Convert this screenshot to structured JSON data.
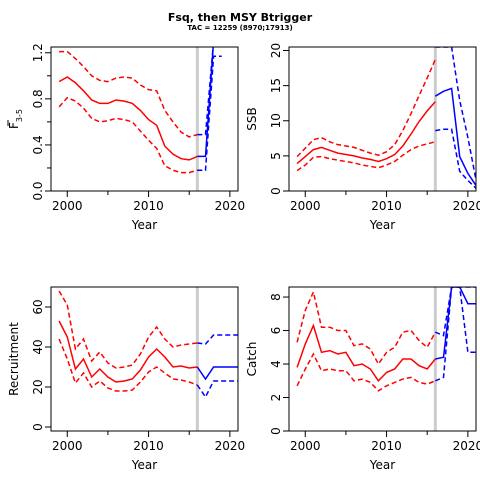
{
  "title": "Fsq, then MSY Btrigger",
  "subtitle": "TAC = 12259 (8970;17913)",
  "colors": {
    "historic": "#ff0000",
    "projection": "#0000ff",
    "vline": "#cccccc"
  },
  "chart_data": [
    {
      "id": "F",
      "type": "line",
      "xlabel": "Year",
      "ylabel": "F3-5",
      "ylabel_main": "F",
      "ylabel_sub": "3-5",
      "xlim": [
        1998,
        2021
      ],
      "ylim": [
        0,
        1.25
      ],
      "xticks": [
        2000,
        2010,
        2020
      ],
      "yticks": [
        0.0,
        0.4,
        0.8,
        1.2
      ],
      "yticks_minor": [
        0.2,
        0.6,
        1.0
      ],
      "yticklabels": [
        "0.0",
        "0.4",
        "0.8",
        "1.2"
      ],
      "vline": 2016,
      "grid": false,
      "historic": {
        "x": [
          1999,
          2000,
          2001,
          2002,
          2003,
          2004,
          2005,
          2006,
          2007,
          2008,
          2009,
          2010,
          2011,
          2012,
          2013,
          2014,
          2015,
          2016
        ],
        "median": [
          0.95,
          0.99,
          0.94,
          0.87,
          0.79,
          0.76,
          0.76,
          0.79,
          0.78,
          0.76,
          0.7,
          0.62,
          0.57,
          0.39,
          0.32,
          0.28,
          0.27,
          0.3
        ],
        "lower": [
          0.73,
          0.81,
          0.78,
          0.72,
          0.63,
          0.6,
          0.61,
          0.63,
          0.62,
          0.6,
          0.52,
          0.44,
          0.37,
          0.22,
          0.18,
          0.16,
          0.16,
          0.18
        ],
        "upper": [
          1.21,
          1.21,
          1.15,
          1.08,
          1.0,
          0.96,
          0.95,
          0.98,
          0.99,
          0.98,
          0.92,
          0.88,
          0.87,
          0.7,
          0.6,
          0.51,
          0.47,
          0.49
        ]
      },
      "projection": {
        "x": [
          2016,
          2017,
          2018,
          2019
        ],
        "median": [
          0.3,
          0.3,
          1.3,
          1.3
        ],
        "lower": [
          0.18,
          0.18,
          1.17,
          1.17
        ],
        "upper": [
          0.49,
          0.49,
          1.3,
          1.3
        ]
      }
    },
    {
      "id": "SSB",
      "type": "line",
      "xlabel": "Year",
      "ylabel": "SSB",
      "xlim": [
        1998,
        2021
      ],
      "ylim": [
        0,
        20.5
      ],
      "xticks": [
        2000,
        2010,
        2020
      ],
      "yticks": [
        0,
        5,
        10,
        15,
        20
      ],
      "yticklabels": [
        "0",
        "5",
        "10",
        "15",
        "20"
      ],
      "vline": 2016,
      "grid": false,
      "historic": {
        "x": [
          1999,
          2000,
          2001,
          2002,
          2003,
          2004,
          2005,
          2006,
          2007,
          2008,
          2009,
          2010,
          2011,
          2012,
          2013,
          2014,
          2015,
          2016
        ],
        "median": [
          3.9,
          4.9,
          5.9,
          6.2,
          5.8,
          5.4,
          5.2,
          5.0,
          4.7,
          4.5,
          4.2,
          4.6,
          5.2,
          6.4,
          8.1,
          9.9,
          11.4,
          12.7
        ],
        "lower": [
          2.9,
          3.7,
          4.8,
          4.9,
          4.6,
          4.4,
          4.2,
          4.0,
          3.7,
          3.5,
          3.3,
          3.7,
          4.2,
          5.1,
          5.9,
          6.4,
          6.7,
          7.0
        ],
        "upper": [
          4.9,
          6.1,
          7.3,
          7.6,
          7.0,
          6.6,
          6.4,
          6.2,
          5.8,
          5.4,
          5.1,
          5.6,
          6.6,
          8.6,
          11.0,
          13.6,
          16.1,
          18.7
        ]
      },
      "projection": {
        "x": [
          2016,
          2017,
          2018,
          2019,
          2020,
          2021
        ],
        "median": [
          13.5,
          14.2,
          14.6,
          4.9,
          2.5,
          0.8
        ],
        "lower": [
          8.6,
          8.8,
          8.8,
          2.8,
          1.5,
          0.4
        ],
        "upper": [
          20.5,
          20.5,
          20.5,
          12.9,
          7.6,
          1.6
        ]
      }
    },
    {
      "id": "Recruitment",
      "type": "line",
      "xlabel": "Year",
      "ylabel": "Recruitment",
      "xlim": [
        1998,
        2021
      ],
      "ylim": [
        -2,
        70
      ],
      "xticks": [
        2000,
        2010,
        2020
      ],
      "yticks": [
        0,
        20,
        40,
        60
      ],
      "yticklabels": [
        "0",
        "20",
        "40",
        "60"
      ],
      "vline": 2016,
      "grid": false,
      "historic": {
        "x": [
          1999,
          2000,
          2001,
          2002,
          2003,
          2004,
          2005,
          2006,
          2007,
          2008,
          2009,
          2010,
          2011,
          2012,
          2013,
          2014,
          2015,
          2016
        ],
        "median": [
          53,
          45,
          29,
          34,
          25,
          29,
          25,
          22.5,
          23,
          24,
          28.5,
          35,
          39,
          35,
          30,
          30.5,
          29.5,
          30
        ],
        "lower": [
          44,
          34,
          22,
          27,
          20,
          23,
          19.5,
          18,
          18,
          18.5,
          22.5,
          27.5,
          30,
          27,
          24,
          23.5,
          22.5,
          21
        ],
        "upper": [
          68,
          61,
          39,
          44,
          33,
          37.5,
          32,
          29.5,
          30,
          31,
          36.5,
          45,
          50,
          44,
          40,
          41,
          41.5,
          42
        ]
      },
      "projection": {
        "x": [
          2016,
          2017,
          2018,
          2019,
          2020,
          2021
        ],
        "median": [
          30,
          24,
          30,
          30,
          30,
          30
        ],
        "lower": [
          21,
          15,
          23,
          23,
          23,
          23
        ],
        "upper": [
          42,
          41.5,
          46,
          46,
          46,
          46
        ]
      }
    },
    {
      "id": "Catch",
      "type": "line",
      "xlabel": "Year",
      "ylabel": "Catch",
      "xlim": [
        1998,
        2021
      ],
      "ylim": [
        0,
        8.6
      ],
      "xticks": [
        2000,
        2010,
        2020
      ],
      "yticks": [
        0,
        2,
        4,
        6,
        8
      ],
      "yticklabels": [
        "0",
        "2",
        "4",
        "6",
        "8"
      ],
      "vline": 2016,
      "grid": false,
      "historic": {
        "x": [
          1999,
          2000,
          2001,
          2002,
          2003,
          2004,
          2005,
          2006,
          2007,
          2008,
          2009,
          2010,
          2011,
          2012,
          2013,
          2014,
          2015,
          2016
        ],
        "median": [
          3.8,
          5.2,
          6.3,
          4.7,
          4.8,
          4.6,
          4.7,
          3.9,
          4.0,
          3.7,
          3.0,
          3.5,
          3.7,
          4.3,
          4.3,
          3.9,
          3.7,
          4.3
        ],
        "lower": [
          2.7,
          3.7,
          4.6,
          3.6,
          3.7,
          3.6,
          3.6,
          3.0,
          3.1,
          2.9,
          2.4,
          2.7,
          2.9,
          3.1,
          3.2,
          2.9,
          2.8,
          3.0
        ],
        "upper": [
          5.3,
          7.2,
          8.3,
          6.2,
          6.2,
          6.0,
          6.0,
          5.1,
          5.2,
          4.9,
          4.0,
          4.7,
          5.0,
          5.9,
          6.0,
          5.4,
          5.0,
          5.9
        ]
      },
      "projection": {
        "x": [
          2016,
          2017,
          2018,
          2019,
          2020,
          2021
        ],
        "median": [
          4.3,
          4.4,
          8.6,
          8.6,
          7.6,
          7.6
        ],
        "lower": [
          3.0,
          3.2,
          8.6,
          8.6,
          4.7,
          4.7
        ],
        "upper": [
          5.9,
          5.7,
          8.6,
          8.6,
          8.6,
          8.6
        ]
      }
    }
  ]
}
